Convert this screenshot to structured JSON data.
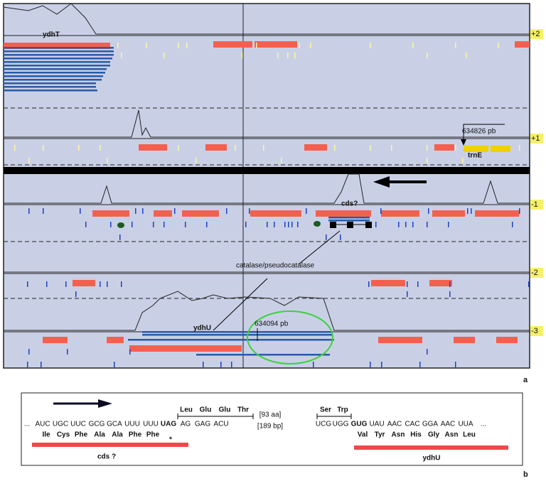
{
  "panel_a": {
    "label": "a",
    "frames": [
      "+2",
      "+1",
      "-1",
      "-2",
      "-3"
    ],
    "annotations": {
      "ydhT": "ydhT",
      "pos1": "634826 pb",
      "trnE": "trnE",
      "cds": "cds?",
      "catalase": "catalase/pseudocatalase",
      "ydhU": "ydhU",
      "pos2": "634094 pb"
    }
  },
  "panel_b": {
    "label": "b",
    "codons": [
      "...",
      "AUC",
      "UGC",
      "UUC",
      "GCG",
      "GCA",
      "UUU",
      "UUU",
      "UAG",
      "AG",
      "GAG",
      "ACU",
      "UCG",
      "UGG",
      "GUG",
      "UAU",
      "AAC",
      "CAC",
      "GGA",
      "AAC",
      "UUA",
      "..."
    ],
    "amino_acids": [
      "Ile",
      "Cys",
      "Phe",
      "Ala",
      "Ala",
      "Phe",
      "Phe",
      "*",
      "Val",
      "Tyr",
      "Asn",
      "His",
      "Gly",
      "Asn",
      "Leu"
    ],
    "upper_amino_acids": [
      "Leu",
      "Glu",
      "Glu",
      "Thr",
      "Ser",
      "Trp"
    ],
    "gap_aa": "[93 aa]",
    "gap_bp": "[189 bp]",
    "cds_label": "cds ?",
    "gene_label": "ydhU"
  }
}
